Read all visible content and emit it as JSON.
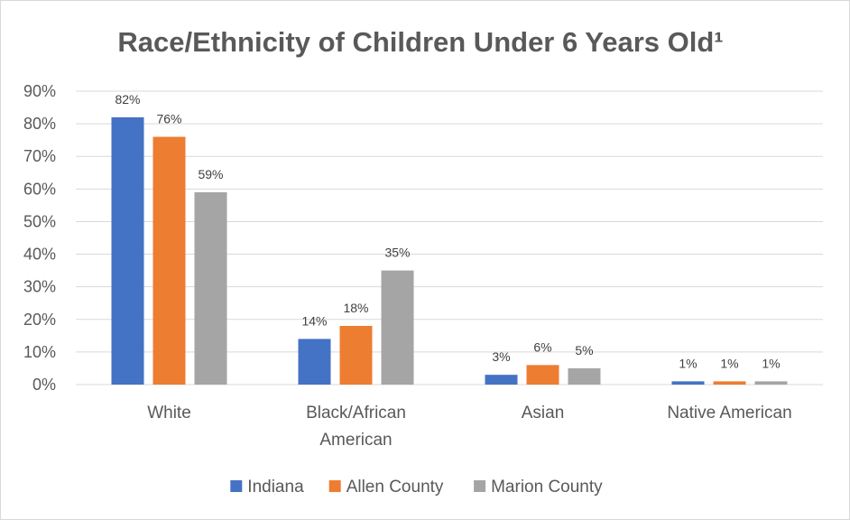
{
  "chart_data": {
    "type": "bar",
    "title": "Race/Ethnicity of Children Under 6 Years Old¹",
    "categories": [
      "White",
      "Black/African American",
      "Asian",
      "Native American"
    ],
    "category_lines": [
      [
        "White"
      ],
      [
        "Black/African",
        "American"
      ],
      [
        "Asian"
      ],
      [
        "Native American"
      ]
    ],
    "series": [
      {
        "name": "Indiana",
        "color": "#4472c4",
        "values": [
          82,
          14,
          3,
          1
        ],
        "labels": [
          "82%",
          "14%",
          "3%",
          "1%"
        ]
      },
      {
        "name": "Allen County",
        "color": "#ed7d31",
        "values": [
          76,
          18,
          6,
          1
        ],
        "labels": [
          "76%",
          "18%",
          "6%",
          "1%"
        ]
      },
      {
        "name": "Marion County",
        "color": "#a5a5a5",
        "values": [
          59,
          35,
          5,
          1
        ],
        "labels": [
          "59%",
          "35%",
          "5%",
          "1%"
        ]
      }
    ],
    "ylim": [
      0,
      90
    ],
    "yticks": [
      0,
      10,
      20,
      30,
      40,
      50,
      60,
      70,
      80,
      90
    ],
    "ytick_labels": [
      "0%",
      "10%",
      "20%",
      "30%",
      "40%",
      "50%",
      "60%",
      "70%",
      "80%",
      "90%"
    ],
    "xlabel": "",
    "ylabel": "",
    "grid": true,
    "legend_position": "bottom"
  }
}
